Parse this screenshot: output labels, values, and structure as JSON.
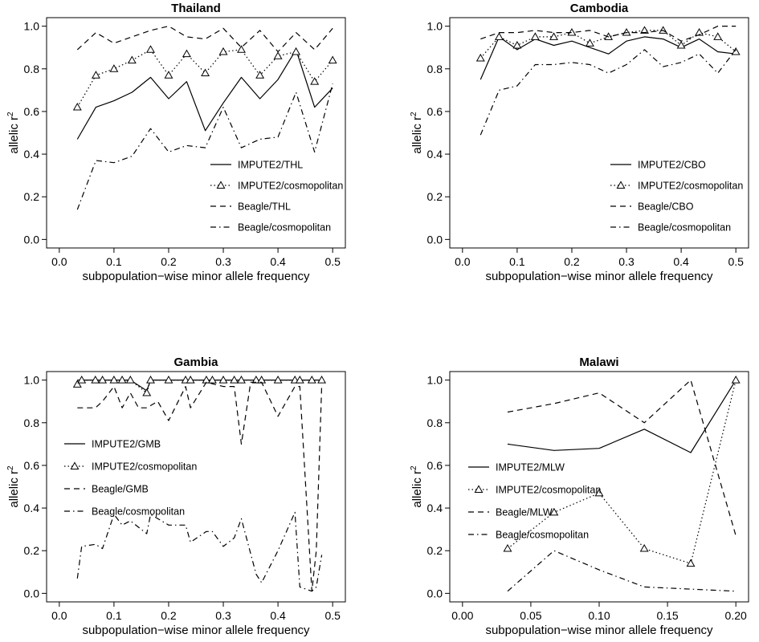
{
  "chart_data": [
    {
      "type": "line",
      "title": "Thailand",
      "xlabel": "subpopulation−wise minor allele frequency",
      "ylabel_main": "allelic r",
      "ylabel_sup": "2",
      "xlim": [
        0,
        0.5
      ],
      "ylim": [
        0,
        1.0
      ],
      "xticks": [
        0.0,
        0.1,
        0.2,
        0.3,
        0.4,
        0.5
      ],
      "xtick_labels": [
        "0.0",
        "0.1",
        "0.2",
        "0.3",
        "0.4",
        "0.5"
      ],
      "yticks": [
        0.0,
        0.2,
        0.4,
        0.6,
        0.8,
        1.0
      ],
      "ytick_labels": [
        "0.0",
        "0.2",
        "0.4",
        "0.6",
        "0.8",
        "1.0"
      ],
      "legend_position": "bottom-right",
      "series": [
        {
          "name": "IMPUTE2/THL",
          "style": "solid",
          "x": [
            0.033,
            0.067,
            0.1,
            0.133,
            0.167,
            0.2,
            0.233,
            0.267,
            0.3,
            0.333,
            0.367,
            0.4,
            0.433,
            0.467,
            0.5
          ],
          "y": [
            0.47,
            0.62,
            0.65,
            0.69,
            0.76,
            0.66,
            0.74,
            0.51,
            0.64,
            0.76,
            0.66,
            0.75,
            0.89,
            0.62,
            0.71
          ]
        },
        {
          "name": "IMPUTE2/cosmopolitan",
          "style": "dotted-triangle",
          "x": [
            0.033,
            0.067,
            0.1,
            0.133,
            0.167,
            0.2,
            0.233,
            0.267,
            0.3,
            0.333,
            0.367,
            0.4,
            0.433,
            0.467,
            0.5
          ],
          "y": [
            0.62,
            0.77,
            0.8,
            0.84,
            0.89,
            0.77,
            0.87,
            0.78,
            0.88,
            0.89,
            0.77,
            0.86,
            0.88,
            0.74,
            0.84
          ]
        },
        {
          "name": "Beagle/THL",
          "style": "dashed",
          "x": [
            0.033,
            0.067,
            0.1,
            0.133,
            0.167,
            0.2,
            0.233,
            0.267,
            0.3,
            0.333,
            0.367,
            0.4,
            0.433,
            0.467,
            0.5
          ],
          "y": [
            0.89,
            0.97,
            0.92,
            0.95,
            0.98,
            1.0,
            0.95,
            0.94,
            0.99,
            0.9,
            0.98,
            0.88,
            0.97,
            0.89,
            0.99
          ]
        },
        {
          "name": "Beagle/cosmopolitan",
          "style": "dashdot",
          "x": [
            0.033,
            0.067,
            0.1,
            0.133,
            0.167,
            0.2,
            0.233,
            0.267,
            0.3,
            0.333,
            0.367,
            0.4,
            0.433,
            0.467,
            0.5
          ],
          "y": [
            0.14,
            0.37,
            0.36,
            0.39,
            0.52,
            0.41,
            0.44,
            0.43,
            0.62,
            0.43,
            0.47,
            0.48,
            0.69,
            0.41,
            0.73
          ]
        }
      ]
    },
    {
      "type": "line",
      "title": "Cambodia",
      "xlabel": "subpopulation−wise minor allele frequency",
      "ylabel_main": "allelic r",
      "ylabel_sup": "2",
      "xlim": [
        0,
        0.5
      ],
      "ylim": [
        0,
        1.0
      ],
      "xticks": [
        0.0,
        0.1,
        0.2,
        0.3,
        0.4,
        0.5
      ],
      "xtick_labels": [
        "0.0",
        "0.1",
        "0.2",
        "0.3",
        "0.4",
        "0.5"
      ],
      "yticks": [
        0.0,
        0.2,
        0.4,
        0.6,
        0.8,
        1.0
      ],
      "ytick_labels": [
        "0.0",
        "0.2",
        "0.4",
        "0.6",
        "0.8",
        "1.0"
      ],
      "legend_position": "bottom-right",
      "series": [
        {
          "name": "IMPUTE2/CBO",
          "style": "solid",
          "x": [
            0.033,
            0.067,
            0.1,
            0.133,
            0.167,
            0.2,
            0.233,
            0.267,
            0.3,
            0.333,
            0.367,
            0.4,
            0.433,
            0.467,
            0.5
          ],
          "y": [
            0.75,
            0.95,
            0.89,
            0.94,
            0.91,
            0.93,
            0.9,
            0.87,
            0.93,
            0.95,
            0.94,
            0.9,
            0.94,
            0.88,
            0.87
          ]
        },
        {
          "name": "IMPUTE2/cosmopolitan",
          "style": "dotted-triangle",
          "x": [
            0.033,
            0.067,
            0.1,
            0.133,
            0.167,
            0.2,
            0.233,
            0.267,
            0.3,
            0.333,
            0.367,
            0.4,
            0.433,
            0.467,
            0.5
          ],
          "y": [
            0.85,
            0.95,
            0.91,
            0.95,
            0.95,
            0.97,
            0.92,
            0.95,
            0.97,
            0.98,
            0.98,
            0.91,
            0.97,
            0.95,
            0.88
          ]
        },
        {
          "name": "Beagle/CBO",
          "style": "dashed",
          "x": [
            0.033,
            0.067,
            0.1,
            0.133,
            0.167,
            0.2,
            0.233,
            0.267,
            0.3,
            0.333,
            0.367,
            0.4,
            0.433,
            0.467,
            0.5
          ],
          "y": [
            0.94,
            0.97,
            0.97,
            0.98,
            0.97,
            0.97,
            0.98,
            0.95,
            0.97,
            0.97,
            0.98,
            0.93,
            0.96,
            1.0,
            1.0
          ]
        },
        {
          "name": "Beagle/cosmopolitan",
          "style": "dashdot",
          "x": [
            0.033,
            0.067,
            0.1,
            0.133,
            0.167,
            0.2,
            0.233,
            0.267,
            0.3,
            0.333,
            0.367,
            0.4,
            0.433,
            0.467,
            0.5
          ],
          "y": [
            0.49,
            0.7,
            0.72,
            0.82,
            0.82,
            0.83,
            0.82,
            0.78,
            0.82,
            0.89,
            0.81,
            0.83,
            0.87,
            0.78,
            0.89
          ]
        }
      ]
    },
    {
      "type": "line",
      "title": "Gambia",
      "xlabel": "subpopulation−wise minor allele frequency",
      "ylabel_main": "allelic r",
      "ylabel_sup": "2",
      "xlim": [
        0,
        0.5
      ],
      "ylim": [
        0,
        1.0
      ],
      "xticks": [
        0.0,
        0.1,
        0.2,
        0.3,
        0.4,
        0.5
      ],
      "xtick_labels": [
        "0.0",
        "0.1",
        "0.2",
        "0.3",
        "0.4",
        "0.5"
      ],
      "yticks": [
        0.0,
        0.2,
        0.4,
        0.6,
        0.8,
        1.0
      ],
      "ytick_labels": [
        "0.0",
        "0.2",
        "0.4",
        "0.6",
        "0.8",
        "1.0"
      ],
      "legend_position": "middle-left",
      "series": [
        {
          "name": "IMPUTE2/GMB",
          "style": "solid",
          "x": [
            0.033,
            0.041,
            0.066,
            0.079,
            0.1,
            0.115,
            0.13,
            0.16,
            0.167,
            0.2,
            0.231,
            0.24,
            0.269,
            0.28,
            0.3,
            0.32,
            0.333,
            0.36,
            0.37,
            0.4,
            0.431,
            0.44,
            0.462,
            0.48
          ],
          "y": [
            1.0,
            1.0,
            1.0,
            1.0,
            1.0,
            1.0,
            1.0,
            0.95,
            1.0,
            1.0,
            1.0,
            1.0,
            1.0,
            1.0,
            1.0,
            1.0,
            1.0,
            1.0,
            1.0,
            1.0,
            1.0,
            1.0,
            1.0,
            1.0
          ]
        },
        {
          "name": "IMPUTE2/cosmopolitan",
          "style": "dotted-triangle",
          "x": [
            0.033,
            0.041,
            0.066,
            0.079,
            0.1,
            0.115,
            0.13,
            0.16,
            0.167,
            0.2,
            0.231,
            0.24,
            0.269,
            0.28,
            0.3,
            0.32,
            0.333,
            0.36,
            0.37,
            0.4,
            0.431,
            0.44,
            0.462,
            0.48
          ],
          "y": [
            0.98,
            1.0,
            1.0,
            1.0,
            1.0,
            1.0,
            1.0,
            0.94,
            1.0,
            1.0,
            1.0,
            1.0,
            1.0,
            1.0,
            1.0,
            1.0,
            1.0,
            1.0,
            1.0,
            1.0,
            1.0,
            1.0,
            1.0,
            1.0
          ]
        },
        {
          "name": "Beagle/GMB",
          "style": "dashed",
          "x": [
            0.033,
            0.041,
            0.066,
            0.079,
            0.1,
            0.115,
            0.13,
            0.145,
            0.16,
            0.18,
            0.2,
            0.231,
            0.24,
            0.269,
            0.3,
            0.32,
            0.333,
            0.35,
            0.37,
            0.4,
            0.431,
            0.44,
            0.462,
            0.47,
            0.48
          ],
          "y": [
            0.87,
            0.87,
            0.87,
            0.9,
            0.97,
            0.87,
            0.94,
            0.87,
            0.87,
            0.9,
            0.81,
            0.97,
            0.87,
            0.99,
            0.97,
            0.97,
            0.7,
            0.99,
            0.99,
            0.83,
            0.97,
            0.97,
            0.01,
            0.2,
            0.98
          ]
        },
        {
          "name": "Beagle/cosmopolitan",
          "style": "dashdot",
          "x": [
            0.033,
            0.041,
            0.066,
            0.079,
            0.1,
            0.115,
            0.13,
            0.145,
            0.16,
            0.167,
            0.2,
            0.22,
            0.231,
            0.24,
            0.269,
            0.28,
            0.3,
            0.32,
            0.333,
            0.36,
            0.37,
            0.4,
            0.431,
            0.44,
            0.462,
            0.47,
            0.48
          ],
          "y": [
            0.07,
            0.22,
            0.23,
            0.21,
            0.37,
            0.32,
            0.34,
            0.31,
            0.28,
            0.37,
            0.32,
            0.32,
            0.32,
            0.24,
            0.29,
            0.29,
            0.22,
            0.26,
            0.35,
            0.09,
            0.05,
            0.2,
            0.38,
            0.03,
            0.01,
            0.03,
            0.18
          ]
        }
      ]
    },
    {
      "type": "line",
      "title": "Malawi",
      "xlabel": "subpopulation−wise minor allele frequency",
      "ylabel_main": "allelic r",
      "ylabel_sup": "2",
      "xlim": [
        0,
        0.2
      ],
      "ylim": [
        0,
        1.0
      ],
      "xticks": [
        0.0,
        0.05,
        0.1,
        0.15,
        0.2
      ],
      "xtick_labels": [
        "0.00",
        "0.05",
        "0.10",
        "0.15",
        "0.20"
      ],
      "yticks": [
        0.0,
        0.2,
        0.4,
        0.6,
        0.8,
        1.0
      ],
      "ytick_labels": [
        "0.0",
        "0.2",
        "0.4",
        "0.6",
        "0.8",
        "1.0"
      ],
      "legend_position": "bottom-left",
      "series": [
        {
          "name": "IMPUTE2/MLW",
          "style": "solid",
          "x": [
            0.033,
            0.067,
            0.1,
            0.133,
            0.167,
            0.2
          ],
          "y": [
            0.7,
            0.67,
            0.68,
            0.77,
            0.66,
            1.0
          ]
        },
        {
          "name": "IMPUTE2/cosmopolitan",
          "style": "dotted-triangle",
          "x": [
            0.033,
            0.067,
            0.1,
            0.133,
            0.167,
            0.2
          ],
          "y": [
            0.21,
            0.38,
            0.47,
            0.21,
            0.14,
            1.0
          ]
        },
        {
          "name": "Beagle/MLW",
          "style": "dashed",
          "x": [
            0.033,
            0.067,
            0.1,
            0.133,
            0.167,
            0.2
          ],
          "y": [
            0.85,
            0.89,
            0.94,
            0.8,
            1.0,
            0.27
          ]
        },
        {
          "name": "Beagle/cosmopolitan",
          "style": "dashdot",
          "x": [
            0.033,
            0.067,
            0.1,
            0.133,
            0.167,
            0.2
          ],
          "y": [
            0.01,
            0.2,
            0.11,
            0.03,
            0.02,
            0.01
          ]
        }
      ]
    }
  ]
}
